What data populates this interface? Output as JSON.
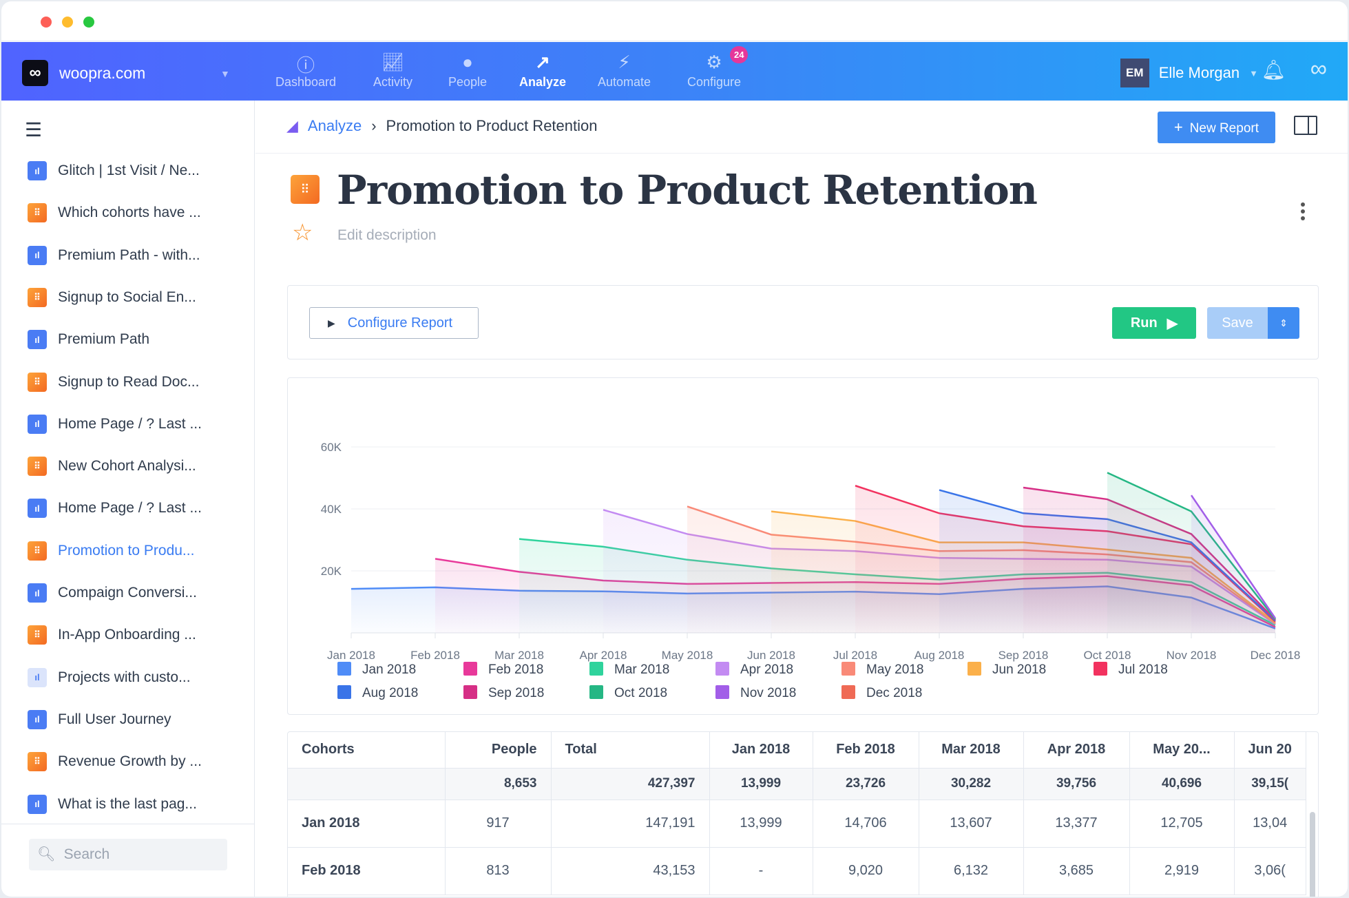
{
  "nav": {
    "site": "woopra.com",
    "items": [
      {
        "label": "Dashboard",
        "icon": "dashboard-icon"
      },
      {
        "label": "Activity",
        "icon": "activity-icon"
      },
      {
        "label": "People",
        "icon": "people-icon"
      },
      {
        "label": "Analyze",
        "icon": "analyze-icon"
      },
      {
        "label": "Automate",
        "icon": "automate-icon"
      },
      {
        "label": "Configure",
        "icon": "gear-icon"
      }
    ],
    "configure_badge": "24",
    "user_initials": "EM",
    "user_name": "Elle Morgan"
  },
  "sidebar": {
    "items": [
      {
        "label": "Glitch | 1st Visit / Ne...",
        "type": "b"
      },
      {
        "label": "Which cohorts have ...",
        "type": "o"
      },
      {
        "label": "Premium Path - with...",
        "type": "b"
      },
      {
        "label": "Signup to Social En...",
        "type": "o"
      },
      {
        "label": "Premium Path",
        "type": "b"
      },
      {
        "label": "Signup to Read Doc...",
        "type": "o"
      },
      {
        "label": "Home Page / ? Last ...",
        "type": "b"
      },
      {
        "label": "New Cohort Analysi...",
        "type": "o"
      },
      {
        "label": "Home Page / ? Last ...",
        "type": "b"
      },
      {
        "label": "Promotion to Produ...",
        "type": "o",
        "active": true
      },
      {
        "label": "Compaign Conversi...",
        "type": "b"
      },
      {
        "label": "In-App Onboarding ...",
        "type": "o"
      },
      {
        "label": "Projects with custo...",
        "type": "l"
      },
      {
        "label": "Full User Journey",
        "type": "b"
      },
      {
        "label": "Revenue Growth by ...",
        "type": "o"
      },
      {
        "label": "What is the last pag...",
        "type": "b"
      }
    ],
    "search_placeholder": "Search"
  },
  "breadcrumb": {
    "root": "Analyze",
    "current": "Promotion to Product Retention"
  },
  "new_report": "New Report",
  "report": {
    "title": "Promotion to Product Retention",
    "description_placeholder": "Edit description",
    "configure": "Configure Report",
    "run": "Run",
    "save": "Save"
  },
  "chart_data": {
    "type": "area",
    "title": "",
    "xlabel": "",
    "ylabel": "",
    "ylim": [
      0,
      60000
    ],
    "yticks": [
      "20K",
      "40K",
      "60K"
    ],
    "ytick_values": [
      20000,
      40000,
      60000
    ],
    "x": [
      "Jan 2018",
      "Feb 2018",
      "Mar 2018",
      "Apr 2018",
      "May 2018",
      "Jun 2018",
      "Jul 2018",
      "Aug 2018",
      "Sep 2018",
      "Oct 2018",
      "Nov 2018",
      "Dec 2018"
    ],
    "legend_position": "bottom",
    "series": [
      {
        "name": "Jan 2018",
        "color": "#4f8cf7",
        "values": [
          14200,
          14700,
          13600,
          13400,
          12700,
          13000,
          13300,
          12500,
          14200,
          15000,
          11400,
          1400
        ]
      },
      {
        "name": "Feb 2018",
        "color": "#e8399a",
        "values": [
          null,
          23900,
          19700,
          16900,
          15800,
          16100,
          16400,
          15800,
          17500,
          18300,
          15300,
          1900
        ]
      },
      {
        "name": "Mar 2018",
        "color": "#2fd39c",
        "values": [
          null,
          null,
          30300,
          27800,
          23600,
          20800,
          18900,
          17200,
          18900,
          19400,
          16400,
          2500
        ]
      },
      {
        "name": "Apr 2018",
        "color": "#c38bf2",
        "values": [
          null,
          null,
          null,
          39700,
          31900,
          27200,
          26400,
          24200,
          23900,
          23600,
          21400,
          2800
        ]
      },
      {
        "name": "May 2018",
        "color": "#f98a78",
        "values": [
          null,
          null,
          null,
          null,
          40800,
          31700,
          29400,
          26400,
          26700,
          25300,
          22800,
          3000
        ]
      },
      {
        "name": "Jun 2018",
        "color": "#fbb04a",
        "values": [
          null,
          null,
          null,
          null,
          null,
          39200,
          36100,
          29200,
          29200,
          26900,
          24200,
          3300
        ]
      },
      {
        "name": "Jul 2018",
        "color": "#f2325f",
        "values": [
          null,
          null,
          null,
          null,
          null,
          null,
          47500,
          38600,
          34400,
          32800,
          28600,
          3600
        ]
      },
      {
        "name": "Aug 2018",
        "color": "#3a74e8",
        "values": [
          null,
          null,
          null,
          null,
          null,
          null,
          null,
          46100,
          38600,
          36700,
          29200,
          3900
        ]
      },
      {
        "name": "Sep 2018",
        "color": "#d62f86",
        "values": [
          null,
          null,
          null,
          null,
          null,
          null,
          null,
          null,
          46900,
          43100,
          31900,
          4200
        ]
      },
      {
        "name": "Oct 2018",
        "color": "#25b784",
        "values": [
          null,
          null,
          null,
          null,
          null,
          null,
          null,
          null,
          null,
          51700,
          39200,
          4400
        ]
      },
      {
        "name": "Nov 2018",
        "color": "#a25ee8",
        "values": [
          null,
          null,
          null,
          null,
          null,
          null,
          null,
          null,
          null,
          null,
          44400,
          4700
        ]
      },
      {
        "name": "Dec 2018",
        "color": "#ef6a55",
        "values": [
          null,
          null,
          null,
          null,
          null,
          null,
          null,
          null,
          null,
          null,
          null,
          5000
        ]
      }
    ]
  },
  "table": {
    "headers": [
      "Cohorts",
      "People",
      "Total",
      "Jan 2018",
      "Feb 2018",
      "Mar 2018",
      "Apr 2018",
      "May 20...",
      "Jun 20"
    ],
    "totals": [
      "",
      "8,653",
      "427,397",
      "13,999",
      "23,726",
      "30,282",
      "39,756",
      "40,696",
      "39,15("
    ],
    "rows": [
      [
        "Jan 2018",
        "917",
        "147,191",
        "13,999",
        "14,706",
        "13,607",
        "13,377",
        "12,705",
        "13,04"
      ],
      [
        "Feb 2018",
        "813",
        "43,153",
        "-",
        "9,020",
        "6,132",
        "3,685",
        "2,919",
        "3,06("
      ]
    ]
  }
}
